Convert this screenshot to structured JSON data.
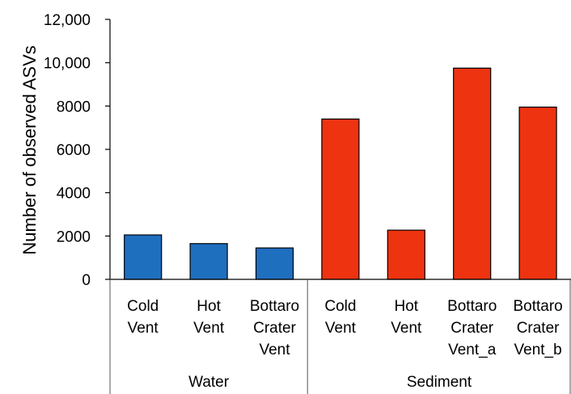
{
  "chart_data": {
    "type": "bar",
    "ylabel": "Number of observed ASVs",
    "ylim": [
      0,
      12000
    ],
    "yticks": [
      {
        "value": 0,
        "label": "0"
      },
      {
        "value": 2000,
        "label": "2000"
      },
      {
        "value": 4000,
        "label": "4000"
      },
      {
        "value": 6000,
        "label": "6000"
      },
      {
        "value": 8000,
        "label": "8000"
      },
      {
        "value": 10000,
        "label": "10,000"
      },
      {
        "value": 12000,
        "label": "12,000"
      }
    ],
    "grid": false,
    "groups": [
      {
        "name": "Water",
        "color": "#1f6fbf",
        "categories": [
          [
            "Cold",
            "Vent"
          ],
          [
            "Hot",
            "Vent"
          ],
          [
            "Bottaro",
            "Crater",
            "Vent"
          ]
        ],
        "values": [
          2050,
          1650,
          1450
        ]
      },
      {
        "name": "Sediment",
        "color": "#ee3311",
        "categories": [
          [
            "Cold",
            "Vent"
          ],
          [
            "Hot",
            "Vent"
          ],
          [
            "Bottaro",
            "Crater",
            "Vent_a"
          ],
          [
            "Bottaro",
            "Crater",
            "Vent_b"
          ]
        ],
        "values": [
          7400,
          2270,
          9750,
          7950
        ]
      }
    ]
  }
}
